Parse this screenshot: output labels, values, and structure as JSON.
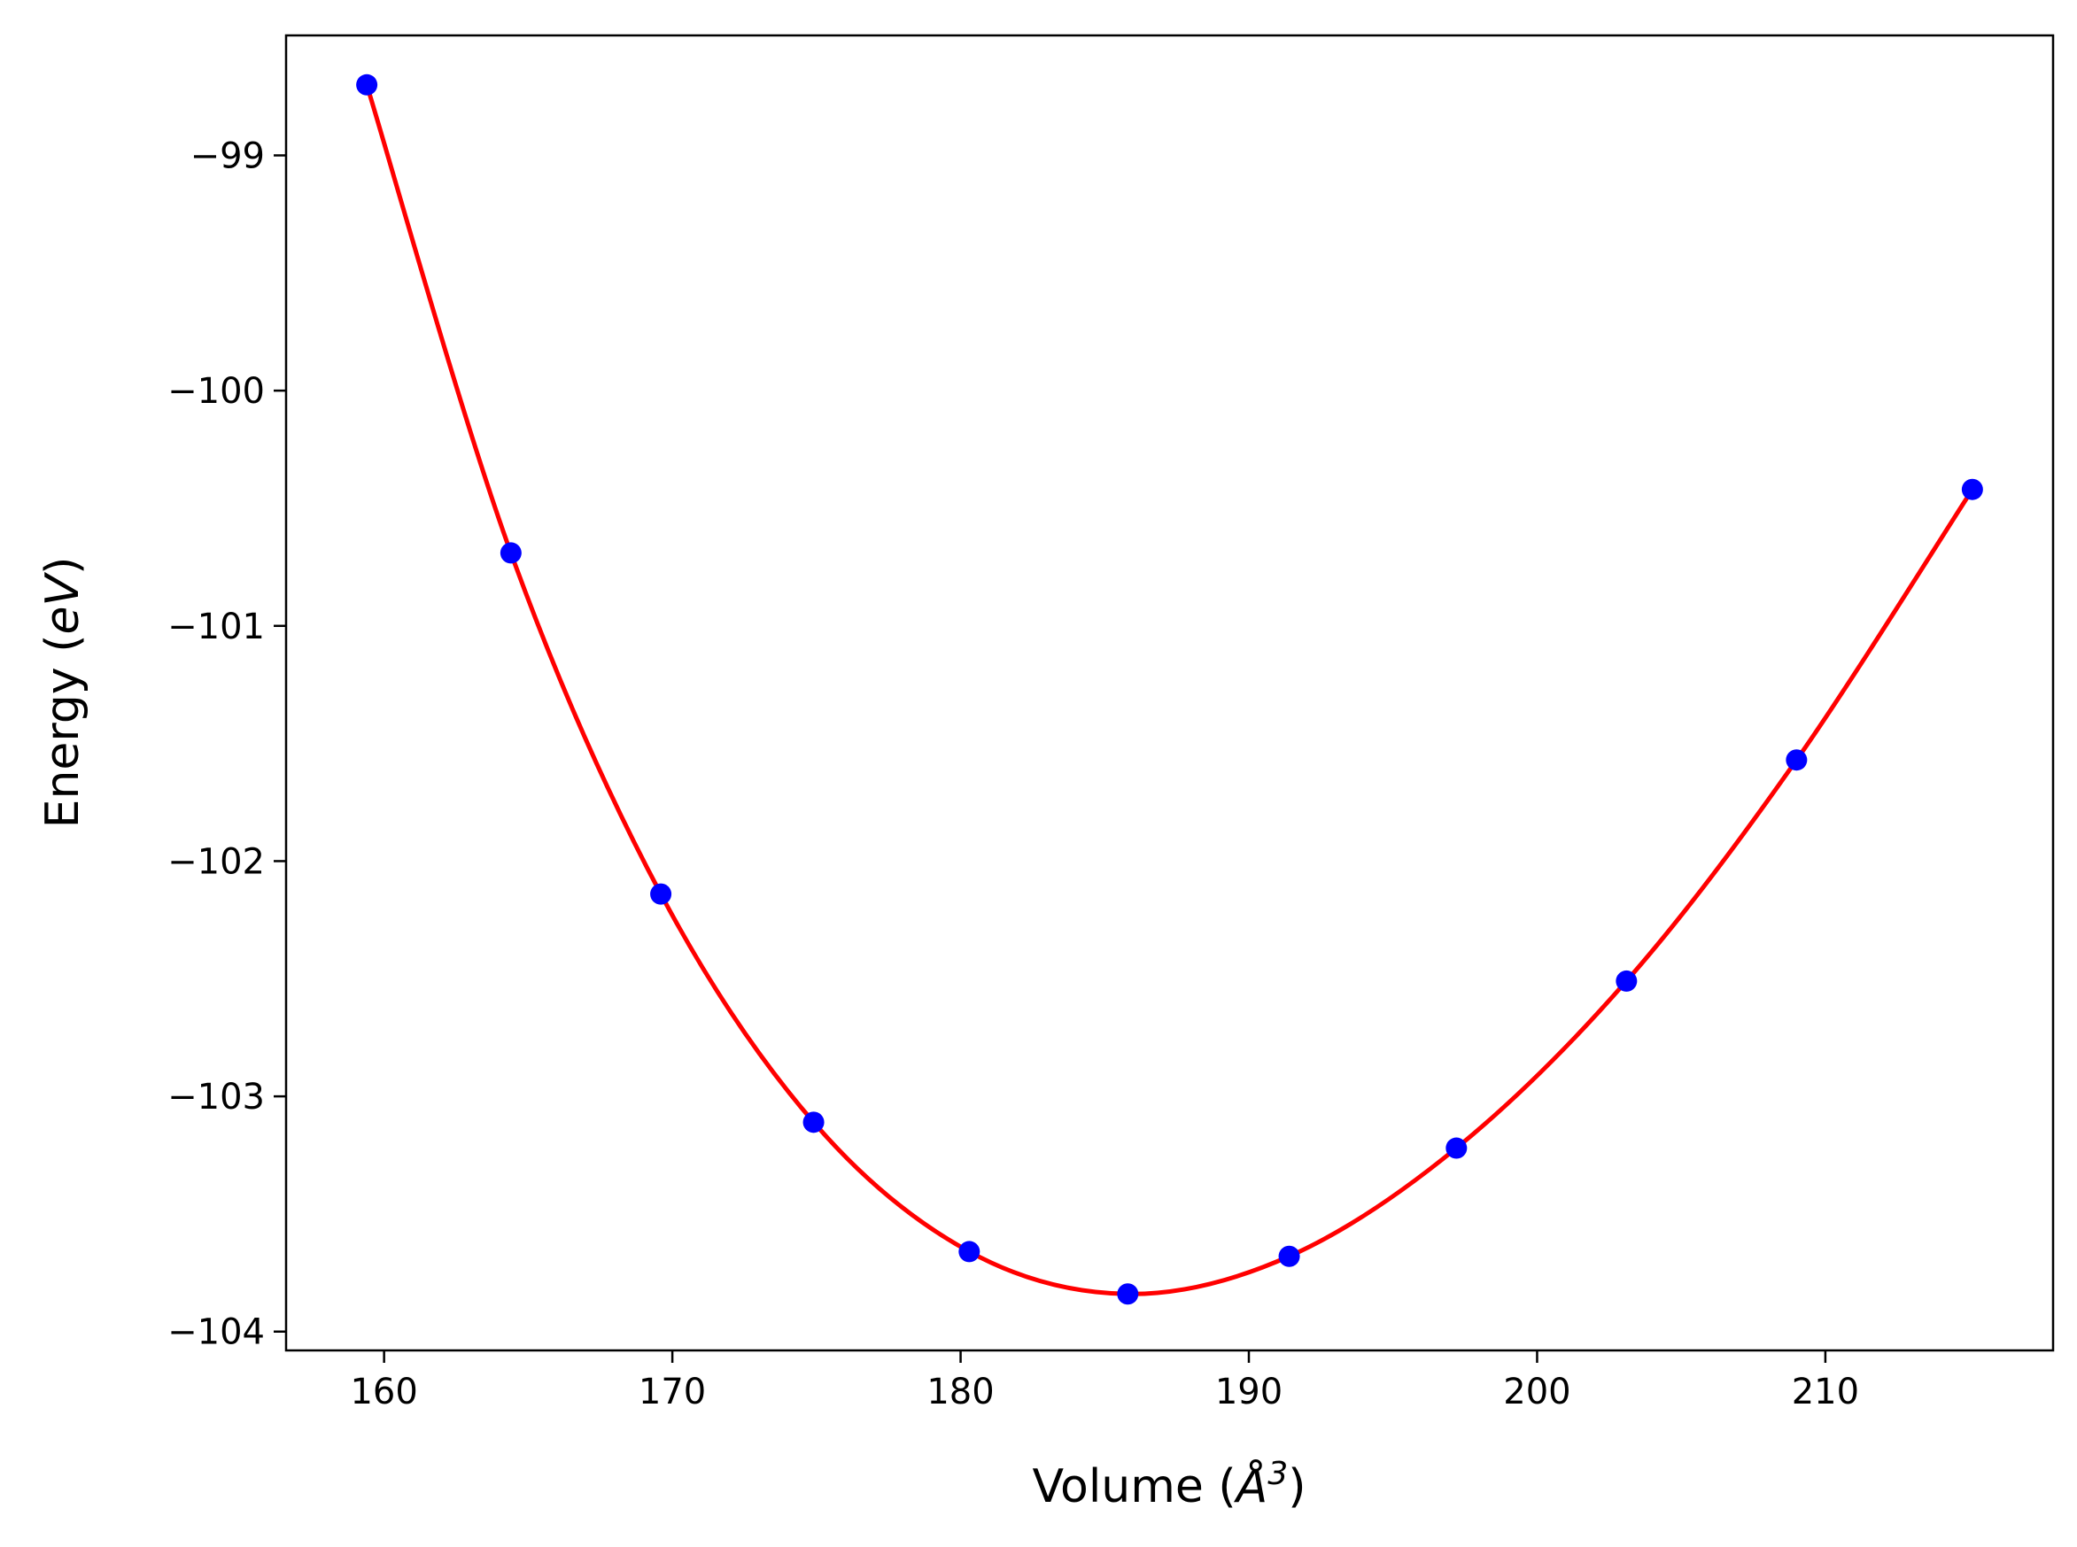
{
  "chart_data": {
    "type": "line",
    "xlabel": "Volume (Å³)",
    "xlabel_parts": {
      "prefix": "Volume (",
      "symbol": "Å",
      "exponent": "3",
      "suffix": ")"
    },
    "ylabel": "Energy (eV)",
    "ylabel_parts": {
      "prefix": "Energy (",
      "unit": "eV",
      "suffix": ")"
    },
    "xlim": [
      156.6,
      217.9
    ],
    "ylim": [
      -104.08,
      -98.49
    ],
    "xticks": [
      160,
      170,
      180,
      190,
      200,
      210
    ],
    "xtick_labels": [
      "160",
      "170",
      "180",
      "190",
      "200",
      "210"
    ],
    "yticks": [
      -99,
      -100,
      -101,
      -102,
      -103,
      -104
    ],
    "ytick_labels": [
      "−99",
      "−100",
      "−101",
      "−102",
      "−103",
      "−104"
    ],
    "grid": false,
    "series": [
      {
        "kind": "scatter",
        "color": "#0000ff",
        "x": [
          159.4,
          164.4,
          169.6,
          174.9,
          180.3,
          185.8,
          191.4,
          197.2,
          203.1,
          209.0,
          215.1
        ],
        "y": [
          -98.7,
          -100.69,
          -102.14,
          -103.11,
          -103.66,
          -103.84,
          -103.68,
          -103.22,
          -102.51,
          -101.57,
          -100.42
        ]
      },
      {
        "kind": "fit-curve",
        "color": "#ff0000",
        "x": [
          159.4,
          164.4,
          169.6,
          174.9,
          180.3,
          185.8,
          191.4,
          197.2,
          203.1,
          209.0,
          215.1
        ],
        "y": [
          -98.7,
          -100.69,
          -102.14,
          -103.11,
          -103.66,
          -103.84,
          -103.68,
          -103.22,
          -102.51,
          -101.57,
          -100.42
        ]
      }
    ]
  }
}
